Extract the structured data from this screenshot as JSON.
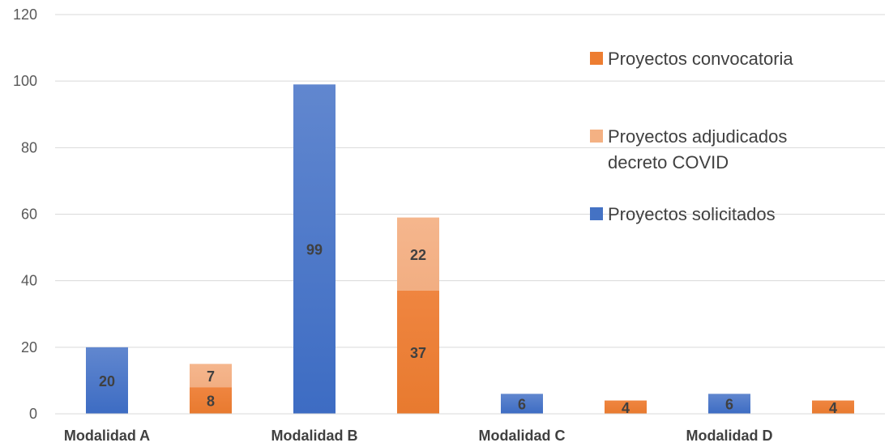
{
  "chart_data": {
    "type": "bar",
    "stacked": true,
    "categories": [
      "Modalidad A",
      "",
      "Modalidad B",
      "",
      "Modalidad C",
      "",
      "Modalidad D",
      ""
    ],
    "ylim": [
      0,
      120
    ],
    "yticks": [
      0,
      20,
      40,
      60,
      80,
      100,
      120
    ],
    "grid": true,
    "legend_position": "right",
    "series": [
      {
        "name": "Proyectos solicitados",
        "color": "#4472C4",
        "values": [
          20,
          0,
          99,
          0,
          6,
          0,
          6,
          0
        ]
      },
      {
        "name": "Proyectos convocatoria",
        "color": "#ED7D31",
        "values": [
          0,
          8,
          0,
          37,
          0,
          4,
          0,
          4
        ]
      },
      {
        "name": "Proyectos adjudicados decreto COVID",
        "color": "#F4B183",
        "values": [
          0,
          7,
          0,
          22,
          0,
          0,
          0,
          0
        ]
      }
    ],
    "legend": [
      {
        "series": 1,
        "lines": [
          "Proyectos convocatoria"
        ]
      },
      {
        "series": 2,
        "lines": [
          "Proyectos adjudicados",
          "decreto COVID"
        ]
      },
      {
        "series": 0,
        "lines": [
          "Proyectos solicitados"
        ]
      }
    ],
    "title": "",
    "xlabel": "",
    "ylabel": ""
  }
}
